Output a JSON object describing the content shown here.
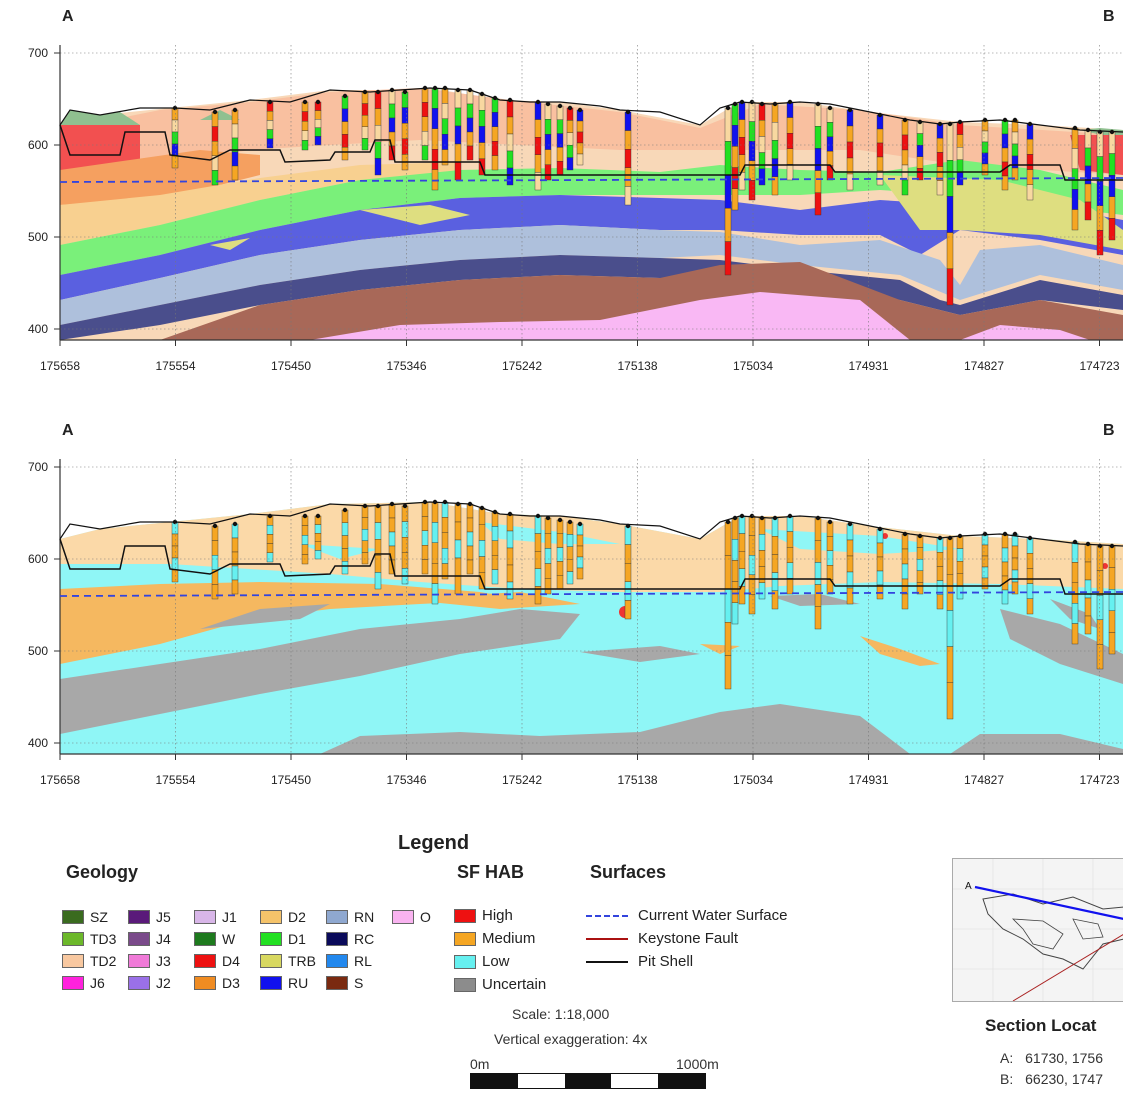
{
  "sections": [
    {
      "id": "geology",
      "point_a": "A",
      "point_b": "B",
      "y_ticks": [
        "700",
        "600",
        "500",
        "400"
      ],
      "x_ticks": [
        "175658",
        "175554",
        "175450",
        "175346",
        "175242",
        "175138",
        "175034",
        "174931",
        "174827",
        "174723"
      ]
    },
    {
      "id": "habitat",
      "point_a": "A",
      "point_b": "B",
      "y_ticks": [
        "700",
        "600",
        "500",
        "400"
      ],
      "x_ticks": [
        "175658",
        "175554",
        "175450",
        "175346",
        "175242",
        "175138",
        "175034",
        "174931",
        "174827",
        "174723"
      ]
    }
  ],
  "legend": {
    "title": "Legend",
    "geology": {
      "title": "Geology",
      "items": [
        {
          "code": "SZ",
          "color": "#3a6b1f"
        },
        {
          "code": "J5",
          "color": "#5a1a7a"
        },
        {
          "code": "J1",
          "color": "#d8b6e8"
        },
        {
          "code": "D2",
          "color": "#f5c36a"
        },
        {
          "code": "RN",
          "color": "#8fa8d0"
        },
        {
          "code": "O",
          "color": "#f9b3f0"
        },
        {
          "code": "TD3",
          "color": "#6cb82a"
        },
        {
          "code": "J4",
          "color": "#7a4a8a"
        },
        {
          "code": "W",
          "color": "#1e7a1e"
        },
        {
          "code": "D1",
          "color": "#22e022"
        },
        {
          "code": "RC",
          "color": "#0a0a5a"
        },
        {
          "code": "",
          "color": ""
        },
        {
          "code": "TD2",
          "color": "#f8c8a0"
        },
        {
          "code": "J3",
          "color": "#f07ad8"
        },
        {
          "code": "D4",
          "color": "#ee1111"
        },
        {
          "code": "TRB",
          "color": "#d8d860"
        },
        {
          "code": "RL",
          "color": "#2288ee"
        },
        {
          "code": "",
          "color": ""
        },
        {
          "code": "J6",
          "color": "#ff22dd"
        },
        {
          "code": "J2",
          "color": "#9a70e8"
        },
        {
          "code": "D3",
          "color": "#f08c22"
        },
        {
          "code": "RU",
          "color": "#1111ee"
        },
        {
          "code": "S",
          "color": "#7a2a10"
        },
        {
          "code": "",
          "color": ""
        }
      ]
    },
    "sf_hab": {
      "title": "SF HAB",
      "items": [
        {
          "label": "High",
          "color": "#ee1111"
        },
        {
          "label": "Medium",
          "color": "#f5a623"
        },
        {
          "label": "Low",
          "color": "#66f0f0"
        },
        {
          "label": "Uncertain",
          "color": "#8c8c8c"
        }
      ]
    },
    "surfaces": {
      "title": "Surfaces",
      "items": [
        {
          "label": "Current Water Surface",
          "color": "#3344dd",
          "style": "dashed"
        },
        {
          "label": "Keystone Fault",
          "color": "#aa1111",
          "style": "solid"
        },
        {
          "label": "Pit Shell",
          "color": "#111111",
          "style": "solid"
        }
      ]
    },
    "scale": "Scale: 1:18,000",
    "vertical_exaggeration": "Vertical exaggeration: 4x",
    "scalebar_start": "0m",
    "scalebar_end": "1000m"
  },
  "section_location": {
    "title": "Section Locat",
    "a_label": "A:",
    "a_coords": "61730, 1756",
    "b_label": "B:",
    "b_coords": "66230, 1747",
    "inset_a_marker": "A"
  }
}
